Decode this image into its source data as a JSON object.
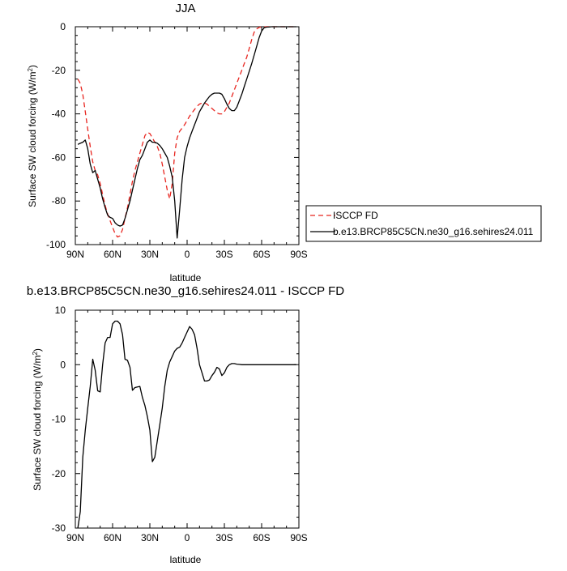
{
  "chart_data": [
    {
      "type": "line",
      "title": "JJA",
      "xlabel": "latitude",
      "ylabel": "Surface SW cloud forcing (W/m",
      "ylabel_superscript": "2",
      "ylabel_suffix": ")",
      "xlim": [
        90,
        -90
      ],
      "ylim": [
        -100,
        0
      ],
      "xtick_values": [
        90,
        60,
        30,
        0,
        -30,
        -60,
        -90
      ],
      "xtick_labels": [
        "90N",
        "60N",
        "30N",
        "0",
        "30S",
        "60S",
        "90S"
      ],
      "ytick_values": [
        0,
        -20,
        -40,
        -60,
        -80,
        -100
      ],
      "ytick_labels": [
        "0",
        "-20",
        "-40",
        "-60",
        "-80",
        "-100"
      ],
      "legend_position": "outside-right",
      "series": [
        {
          "name": "ISCCP FD",
          "color": "#e8251f",
          "dash": "dashed",
          "x": [
            88,
            86,
            84,
            82,
            80,
            78,
            76,
            74,
            72,
            70,
            68,
            66,
            64,
            62,
            60,
            58,
            56,
            54,
            52,
            50,
            48,
            46,
            44,
            42,
            40,
            38,
            36,
            34,
            32,
            30,
            28,
            26,
            24,
            22,
            20,
            18,
            16,
            14,
            12,
            10,
            8,
            6,
            4,
            2,
            0,
            -2,
            -4,
            -6,
            -8,
            -10,
            -12,
            -14,
            -16,
            -18,
            -20,
            -22,
            -24,
            -26,
            -28,
            -30,
            -32,
            -34,
            -36,
            -38,
            -40,
            -42,
            -44,
            -46,
            -48,
            -50,
            -52,
            -54,
            -56,
            -58,
            -60,
            -62,
            -64,
            -66,
            -68,
            -70,
            -72,
            -74,
            -76,
            -78,
            -80,
            -82,
            -84,
            -86,
            -88
          ],
          "y": [
            -24,
            -26,
            -31,
            -39,
            -47,
            -55,
            -62,
            -66,
            -68,
            -72,
            -77,
            -82,
            -86,
            -89,
            -92,
            -95,
            -96.5,
            -96,
            -93,
            -88,
            -83,
            -77,
            -71,
            -66,
            -62,
            -58,
            -54,
            -50,
            -48.5,
            -49,
            -51,
            -53,
            -55,
            -58,
            -63,
            -69,
            -75,
            -79,
            -72,
            -58,
            -51,
            -48,
            -46.5,
            -45,
            -43,
            -41,
            -39.5,
            -38,
            -36.5,
            -35.5,
            -35,
            -35,
            -35.5,
            -36.5,
            -37.5,
            -38.5,
            -39.5,
            -40,
            -40,
            -39,
            -37,
            -35,
            -32,
            -29,
            -26,
            -23,
            -20,
            -17,
            -14,
            -10,
            -6,
            -2.5,
            -1,
            -0.3,
            -0.1,
            -0.05,
            0,
            0,
            0,
            0,
            0,
            0,
            0,
            0,
            0,
            0,
            0,
            0,
            0
          ]
        },
        {
          "name": "b.e13.BRCP85C5CN.ne30_g16.sehires24.011",
          "color": "#000000",
          "dash": "solid",
          "x": [
            88,
            86,
            84,
            82,
            80,
            78,
            76,
            74,
            72,
            70,
            68,
            66,
            64,
            62,
            60,
            58,
            56,
            54,
            52,
            50,
            48,
            46,
            44,
            42,
            40,
            38,
            36,
            34,
            32,
            30,
            28,
            26,
            24,
            22,
            20,
            18,
            16,
            14,
            12,
            10,
            8,
            6,
            4,
            2,
            0,
            -2,
            -4,
            -6,
            -8,
            -10,
            -12,
            -14,
            -16,
            -18,
            -20,
            -22,
            -24,
            -26,
            -28,
            -30,
            -32,
            -34,
            -36,
            -38,
            -40,
            -42,
            -44,
            -46,
            -48,
            -50,
            -52,
            -54,
            -56,
            -58,
            -60,
            -62,
            -64,
            -66,
            -68,
            -70,
            -72,
            -74,
            -76,
            -78,
            -80,
            -82,
            -84,
            -86,
            -88
          ],
          "y": [
            -54,
            -53.5,
            -53,
            -52,
            -56,
            -63,
            -67,
            -66,
            -70,
            -74,
            -79,
            -83,
            -86.5,
            -87.5,
            -88,
            -90,
            -91,
            -91.5,
            -91,
            -88,
            -84,
            -80,
            -75,
            -70,
            -65,
            -61,
            -59,
            -56,
            -53,
            -52,
            -53,
            -53,
            -53.5,
            -54.5,
            -56,
            -58,
            -60,
            -64,
            -69,
            -80,
            -97,
            -84,
            -70,
            -60,
            -55,
            -51,
            -48,
            -45,
            -42,
            -39,
            -37,
            -35,
            -33.5,
            -32,
            -31,
            -30.5,
            -30.5,
            -30.5,
            -31,
            -33,
            -35.5,
            -37.5,
            -38.5,
            -38.5,
            -37,
            -34,
            -31,
            -27.5,
            -24,
            -20.5,
            -17,
            -13,
            -9,
            -5,
            -2,
            -0.5,
            -0.2,
            -0.1,
            0,
            0,
            0,
            0,
            0,
            0,
            0,
            0,
            0,
            0,
            0
          ]
        }
      ]
    },
    {
      "type": "line",
      "title": "b.e13.BRCP85C5CN.ne30_g16.sehires24.011 - ISCCP FD",
      "xlabel": "latitude",
      "ylabel": "Surface SW cloud forcing (W/m",
      "ylabel_superscript": "2",
      "ylabel_suffix": ")",
      "xlim": [
        90,
        -90
      ],
      "ylim": [
        -30,
        10
      ],
      "xtick_values": [
        90,
        60,
        30,
        0,
        -30,
        -60,
        -90
      ],
      "xtick_labels": [
        "90N",
        "60N",
        "30N",
        "0",
        "30S",
        "60S",
        "90S"
      ],
      "ytick_values": [
        10,
        0,
        -10,
        -20,
        -30
      ],
      "ytick_labels": [
        "10",
        "0",
        "-10",
        "-20",
        "-30"
      ],
      "series": [
        {
          "color": "#000000",
          "dash": "solid",
          "x": [
            88,
            86,
            84,
            82,
            80,
            78,
            76,
            74,
            72,
            70,
            68,
            66,
            64,
            62,
            60,
            58,
            56,
            54,
            52,
            50,
            48,
            46,
            44,
            42,
            40,
            38,
            36,
            34,
            32,
            30,
            28,
            26,
            24,
            22,
            20,
            18,
            16,
            14,
            12,
            10,
            8,
            6,
            4,
            2,
            0,
            -2,
            -4,
            -6,
            -8,
            -10,
            -12,
            -14,
            -16,
            -18,
            -20,
            -22,
            -24,
            -26,
            -28,
            -30,
            -32,
            -34,
            -36,
            -38,
            -40,
            -42,
            -44,
            -46,
            -48,
            -50,
            -52,
            -54,
            -56,
            -58,
            -60,
            -62,
            -64,
            -66,
            -68,
            -70,
            -72,
            -74,
            -76,
            -78,
            -80,
            -82,
            -84,
            -86,
            -88
          ],
          "y": [
            -30,
            -27,
            -17,
            -12,
            -8,
            -4,
            1,
            -1,
            -4.8,
            -5,
            0,
            4,
            5,
            5,
            7.5,
            8,
            8,
            7.5,
            5.5,
            1,
            0.8,
            -0.5,
            -4.7,
            -4.2,
            -4.1,
            -4,
            -6,
            -7.5,
            -9.5,
            -12,
            -17.8,
            -17,
            -14,
            -11,
            -8,
            -4,
            -1,
            0.5,
            1.5,
            2.5,
            3,
            3.2,
            4,
            5,
            6,
            7,
            6.5,
            5.5,
            3,
            0,
            -1.5,
            -3,
            -3,
            -2.8,
            -2,
            -1.4,
            -0.5,
            -0.8,
            -2,
            -1.5,
            -0.5,
            0,
            0.2,
            0.2,
            0.1,
            0.05,
            0,
            0,
            0,
            0,
            0,
            0,
            0,
            0,
            0,
            0,
            0,
            0,
            0,
            0,
            0,
            0,
            0,
            0,
            0,
            0,
            0,
            0,
            0
          ]
        }
      ]
    }
  ]
}
